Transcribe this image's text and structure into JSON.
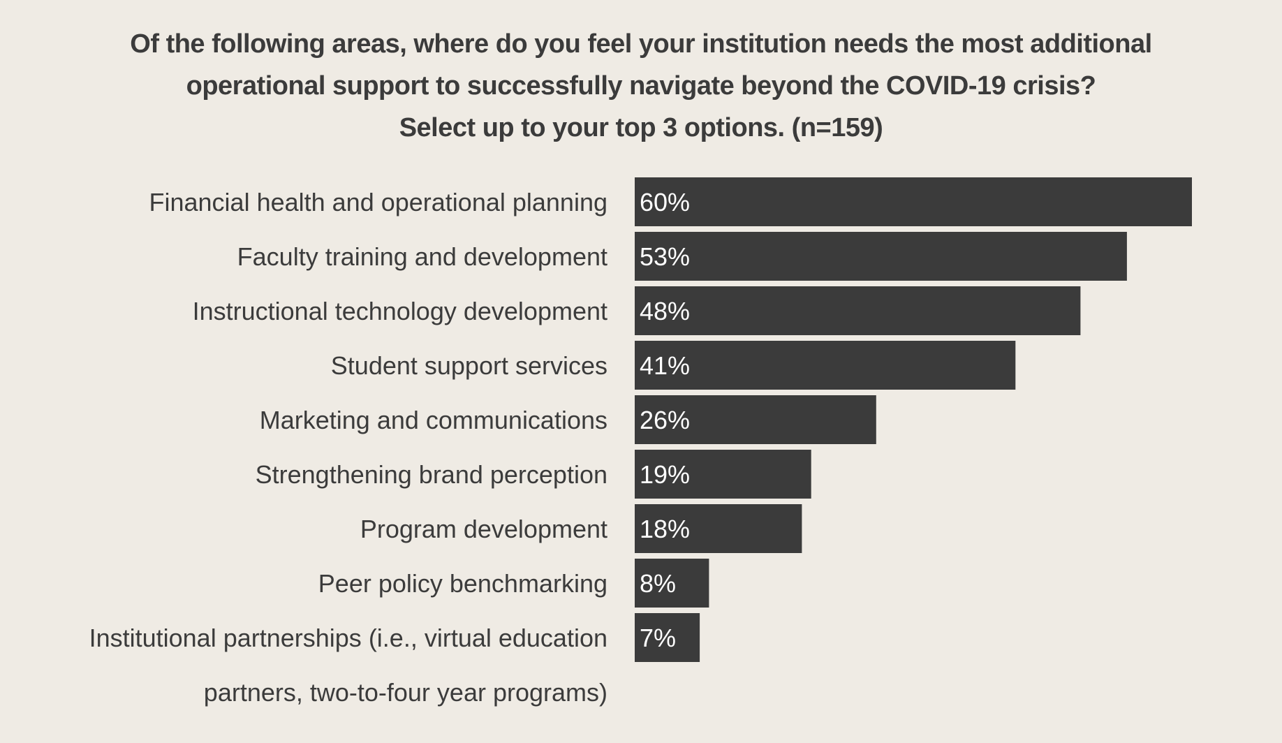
{
  "chart_data": {
    "type": "bar",
    "orientation": "horizontal",
    "title_lines": [
      "Of the following areas, where do you feel your institution needs the most additional",
      "operational support to successfully navigate beyond the COVID-19 crisis?",
      "Select up to your top 3 options. (n=159)"
    ],
    "categories": [
      [
        "Financial health and operational planning"
      ],
      [
        "Faculty training and development"
      ],
      [
        "Instructional technology development"
      ],
      [
        "Student support services"
      ],
      [
        "Marketing and communications"
      ],
      [
        "Strengthening brand perception"
      ],
      [
        "Program development"
      ],
      [
        "Peer policy benchmarking"
      ],
      [
        "Institutional partnerships (i.e., virtual education",
        "partners, two-to-four year programs)"
      ]
    ],
    "values": [
      60,
      53,
      48,
      41,
      26,
      19,
      18,
      8,
      7
    ],
    "value_labels": [
      "60%",
      "53%",
      "48%",
      "41%",
      "26%",
      "19%",
      "18%",
      "8%",
      "7%"
    ],
    "unit": "%",
    "xlim": [
      0,
      60
    ],
    "grid": false,
    "legend": "none",
    "colors": {
      "background": "#efebe4",
      "bar": "#3b3b3b",
      "bar_label": "#ffffff",
      "text": "#3b3b3b"
    }
  }
}
